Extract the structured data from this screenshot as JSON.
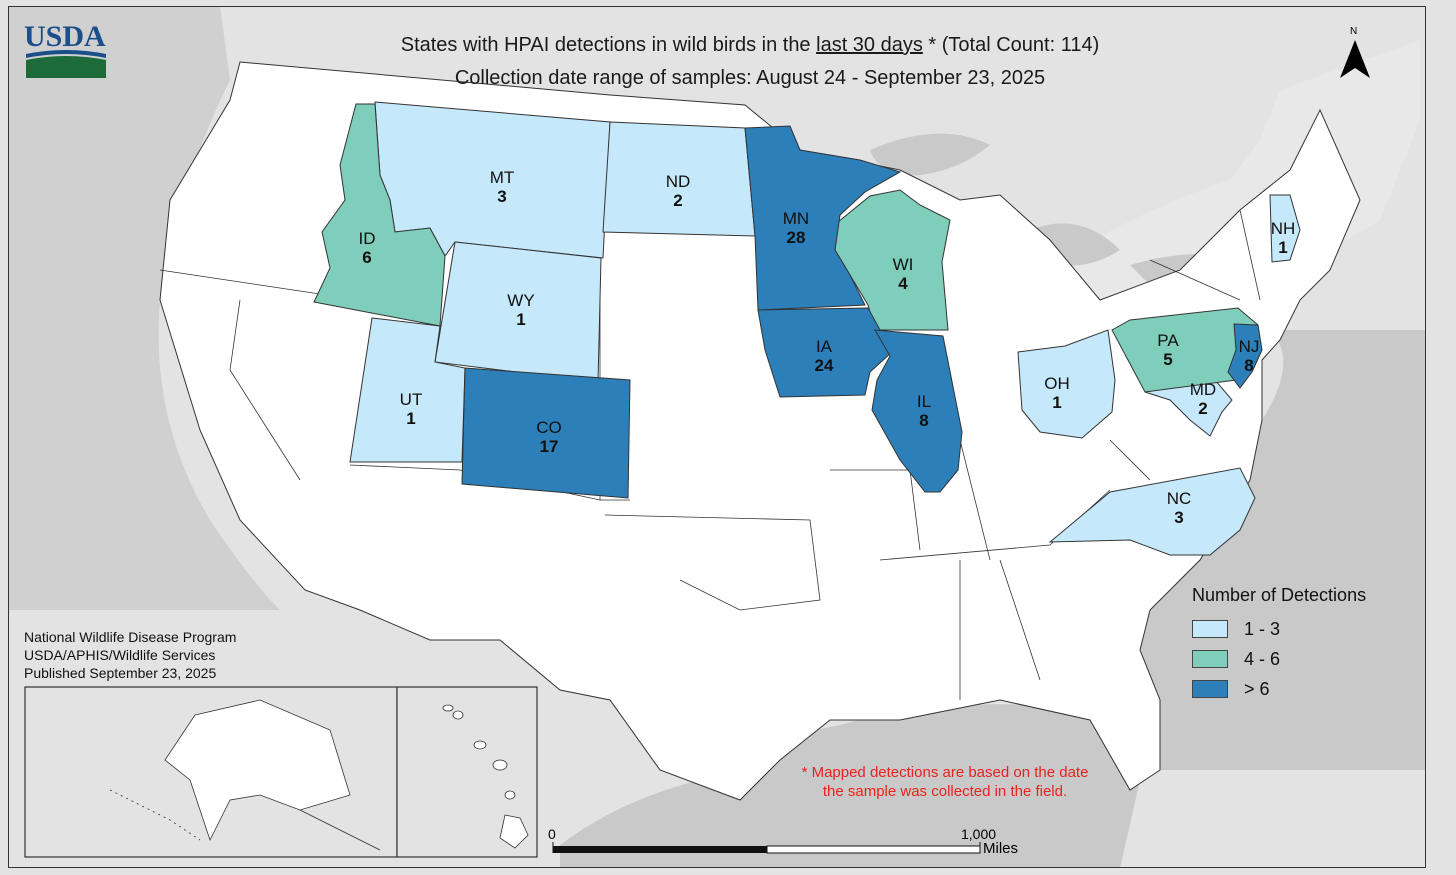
{
  "header": {
    "title_prefix": "States with HPAI detections in wild birds in the ",
    "title_underlined": "last 30 days",
    "title_suffix": " * (Total Count: 114)",
    "subtitle": "Collection date range of samples: August 24 - September 23, 2025"
  },
  "logo": {
    "text": "USDA",
    "icon": "usda-logo-icon"
  },
  "north_arrow": {
    "label": "N"
  },
  "colors": {
    "low": "#c5e8fb",
    "mid": "#7fcdbb",
    "high": "#2c7fb8",
    "land": "#ffffff",
    "background_land": "#e3e3e3",
    "water": "#c9c9c9",
    "note": "#e8231e"
  },
  "states": [
    {
      "abbr": "MT",
      "count": "3",
      "class": "low"
    },
    {
      "abbr": "ND",
      "count": "2",
      "class": "low"
    },
    {
      "abbr": "MN",
      "count": "28",
      "class": "high"
    },
    {
      "abbr": "ID",
      "count": "6",
      "class": "mid"
    },
    {
      "abbr": "WY",
      "count": "1",
      "class": "low"
    },
    {
      "abbr": "WI",
      "count": "4",
      "class": "mid"
    },
    {
      "abbr": "IA",
      "count": "24",
      "class": "high"
    },
    {
      "abbr": "UT",
      "count": "1",
      "class": "low"
    },
    {
      "abbr": "CO",
      "count": "17",
      "class": "high"
    },
    {
      "abbr": "IL",
      "count": "8",
      "class": "high"
    },
    {
      "abbr": "OH",
      "count": "1",
      "class": "low"
    },
    {
      "abbr": "PA",
      "count": "5",
      "class": "mid"
    },
    {
      "abbr": "NJ",
      "count": "8",
      "class": "high"
    },
    {
      "abbr": "MD",
      "count": "2",
      "class": "low"
    },
    {
      "abbr": "NH",
      "count": "1",
      "class": "low"
    },
    {
      "abbr": "NC",
      "count": "3",
      "class": "low"
    }
  ],
  "legend": {
    "title": "Number of Detections",
    "items": [
      {
        "label": "1 - 3",
        "class": "low"
      },
      {
        "label": "4 - 6",
        "class": "mid"
      },
      {
        "label": "> 6",
        "class": "high"
      }
    ]
  },
  "credit": {
    "line1": "National Wildlife Disease Program",
    "line2": "USDA/APHIS/Wildlife Services",
    "line3": "Published September 23, 2025"
  },
  "note": {
    "line1": "* Mapped detections are based on the date",
    "line2": "the sample was collected in the field."
  },
  "scale": {
    "start": "0",
    "end": "1,000",
    "unit": "Miles"
  }
}
